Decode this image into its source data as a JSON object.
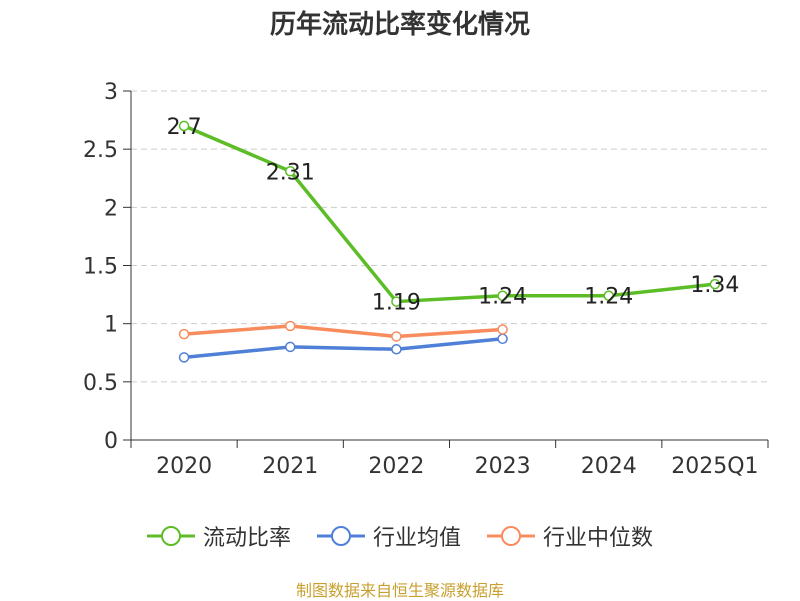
{
  "chart_data": {
    "type": "line",
    "title": "历年流动比率变化情况",
    "categories": [
      "2020",
      "2021",
      "2022",
      "2023",
      "2024",
      "2025Q1"
    ],
    "ylim": [
      0,
      3
    ],
    "yticks": [
      "0",
      "0.5",
      "1",
      "1.5",
      "2",
      "2.5",
      "3"
    ],
    "ytick_values": [
      0,
      0.5,
      1,
      1.5,
      2,
      2.5,
      3
    ],
    "grid": true,
    "legend_position": "bottom",
    "series": [
      {
        "name": "流动比率",
        "color": "#5cbd27",
        "values": [
          2.7,
          2.31,
          1.19,
          1.24,
          1.24,
          1.34
        ],
        "labels": [
          "2.7",
          "2.31",
          "1.19",
          "1.24",
          "1.24",
          "1.34"
        ]
      },
      {
        "name": "行业均值",
        "color": "#4f7fd6",
        "values": [
          0.71,
          0.8,
          0.78,
          0.87,
          null,
          null
        ]
      },
      {
        "name": "行业中位数",
        "color": "#f88c5d",
        "values": [
          0.91,
          0.98,
          0.89,
          0.95,
          null,
          null
        ]
      }
    ]
  },
  "source_note": "制图数据来自恒生聚源数据库",
  "source_note_color": "#c8a030"
}
